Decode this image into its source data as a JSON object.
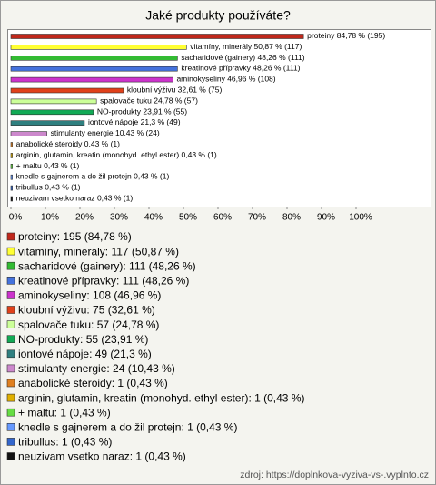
{
  "chart_data": {
    "type": "bar",
    "orientation": "horizontal",
    "title": "Jaké produkty používáte?",
    "categories": [
      "proteiny",
      "vitamíny, minerály",
      "sacharidové (gainery)",
      "kreatinové přípravky",
      "aminokyseliny",
      "kloubní výživu",
      "spalovače tuku",
      "NO-produkty",
      "iontové nápoje",
      "stimulanty energie",
      "anabolické steroidy",
      "arginin, glutamin, kreatin (monohyd. ethyl ester)",
      "+ maltu",
      "knedle s gajnerem a do žil protejn",
      "tribullus",
      "neuzivam vsetko naraz"
    ],
    "values": [
      84.78,
      50.87,
      48.26,
      48.26,
      46.96,
      32.61,
      24.78,
      23.91,
      21.3,
      10.43,
      0.43,
      0.43,
      0.43,
      0.43,
      0.43,
      0.43
    ],
    "value_labels": [
      "84,78 % (195)",
      "50,87 % (117)",
      "48,26 % (111)",
      "48,26 % (111)",
      "46,96 % (108)",
      "32,61 % (75)",
      "24,78 % (57)",
      "23,91 % (55)",
      "21,3 % (49)",
      "10,43 % (24)",
      "0,43 % (1)",
      "0,43 % (1)",
      "0,43 % (1)",
      "0,43 % (1)",
      "0,43 % (1)",
      "0,43 % (1)"
    ],
    "colors": [
      "#c0281c",
      "#ffff33",
      "#33bb33",
      "#4472dd",
      "#cc33cc",
      "#e0401a",
      "#ccff99",
      "#11aa55",
      "#2f8080",
      "#cc88cc",
      "#e08020",
      "#e0b000",
      "#66dd44",
      "#6699ff",
      "#3366cc",
      "#111111"
    ],
    "legend": [
      "proteiny: 195 (84,78 %)",
      "vitamíny, minerály: 117 (50,87 %)",
      "sacharidové (gainery): 111 (48,26 %)",
      "kreatinové přípravky: 111 (48,26 %)",
      "aminokyseliny: 108 (46,96 %)",
      "kloubní výživu: 75 (32,61 %)",
      "spalovače tuku: 57 (24,78 %)",
      "NO-produkty: 55 (23,91 %)",
      "iontové nápoje: 49 (21,3 %)",
      "stimulanty energie: 24 (10,43 %)",
      "anabolické steroidy: 1 (0,43 %)",
      "arginin, glutamin, kreatin (monohyd. ethyl ester): 1 (0,43 %)",
      "+ maltu: 1 (0,43 %)",
      "knedle s gajnerem a do žil protejn: 1 (0,43 %)",
      "tribullus: 1 (0,43 %)",
      "neuzivam vsetko naraz: 1 (0,43 %)"
    ],
    "xlim": [
      0,
      100
    ],
    "xticks": [
      {
        "value": 0,
        "label": "0%"
      },
      {
        "value": 10,
        "label": "10%"
      },
      {
        "value": 20,
        "label": "20%"
      },
      {
        "value": 30,
        "label": "30%"
      },
      {
        "value": 40,
        "label": "40%"
      },
      {
        "value": 50,
        "label": "50%"
      },
      {
        "value": 60,
        "label": "60%"
      },
      {
        "value": 70,
        "label": "70%"
      },
      {
        "value": 80,
        "label": "80%"
      },
      {
        "value": 90,
        "label": "90%"
      },
      {
        "value": 100,
        "label": "100%"
      }
    ],
    "source": "zdroj: https://doplnkova-vyziva-vs-.vyplnto.cz"
  }
}
